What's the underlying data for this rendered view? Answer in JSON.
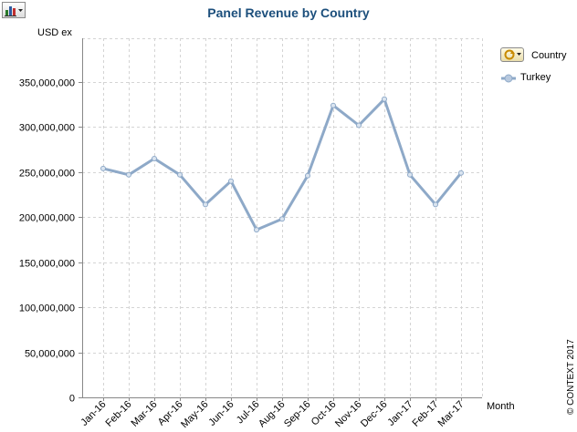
{
  "toolbar": {
    "chart_menu_icon": "bar-chart-menu-icon"
  },
  "chart_data": {
    "type": "line",
    "title": "Panel Revenue by Country",
    "ylabel": "USD ex",
    "xlabel": "Month",
    "categories": [
      "Jan-16",
      "Feb-16",
      "Mar-16",
      "Apr-16",
      "May-16",
      "Jun-16",
      "Jul-16",
      "Aug-16",
      "Sep-16",
      "Oct-16",
      "Nov-16",
      "Dec-16",
      "Jan-17",
      "Feb-17",
      "Mar-17"
    ],
    "series": [
      {
        "name": "Turkey",
        "values": [
          254000000,
          247000000,
          265000000,
          247000000,
          214000000,
          240000000,
          186000000,
          198000000,
          246000000,
          324000000,
          302000000,
          331000000,
          247000000,
          214000000,
          249000000
        ]
      }
    ],
    "ylim": [
      0,
      350000000
    ],
    "yticks": [
      0,
      50000000,
      100000000,
      150000000,
      200000000,
      250000000,
      300000000,
      350000000
    ],
    "ytick_labels": [
      "0",
      "50,000,000",
      "100,000,000",
      "150,000,000",
      "200,000,000",
      "250,000,000",
      "300,000,000",
      "350,000,000"
    ],
    "grid": true,
    "legend_placement": "top-right",
    "legend_title": "Country",
    "series_color": "#8ea9c8"
  },
  "footer": {
    "copyright": "© CONTEXT 2017"
  }
}
